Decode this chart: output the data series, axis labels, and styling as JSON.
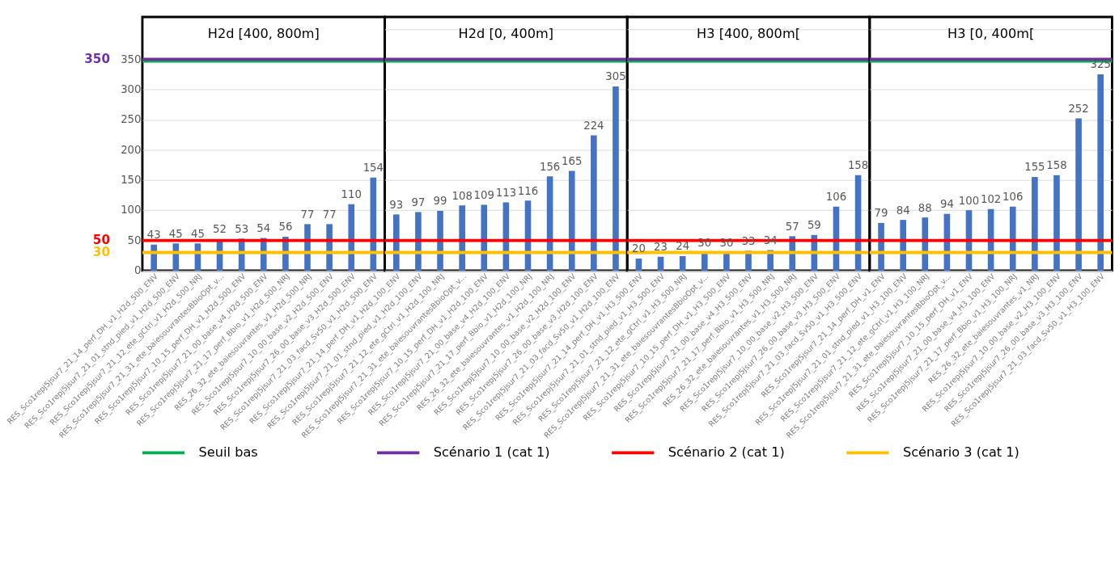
{
  "chart_data": [
    {
      "type": "bar",
      "title": "H2d [400, 800m]",
      "categories": [
        "RES_Sco1repj5jsur7_21_14_perf_DH_v1_H2d_500_ENV",
        "RES_Sco1repj5jsur7_21_01_stnd_pied_v1_H2d_500_ENV",
        "RES_Sco1repj5jsur7_21_12_ete_gCtrl_v1_H2d_500_NRJ",
        "RES_Sco1repj5jsur7_21_31_ete_baiesouvrantesBbioOpt_v...",
        "RES_Sco1repj5jsur7_10_15_perf_DH_v1_H2d_500_ENV",
        "RES_Sco1repj5jsur7_21_00_base_v4_H2d_500_ENV",
        "RES_Sco1repj5jsur7_21_17_perf_Bbio_v1_H2d_500_NRJ",
        "RES_26_32_ete_baiesouvrantes_v1_H2d_500_NRJ",
        "RES_Sco1repj5jsur7_10_00_base_v2_H2d_500_ENV",
        "RES_Sco1repj5jsur7_26_00_base_v3_H2d_500_ENV",
        "RES_Sco1repj5jsur7_21_03_facd_Sv50_v1_H2d_500_ENV"
      ],
      "values": [
        43,
        45,
        45,
        52,
        53,
        54,
        56,
        77,
        77,
        110,
        154
      ],
      "color": "#4472c4",
      "ylim": [
        0,
        420
      ],
      "yticks": [
        0,
        50,
        100,
        150,
        200,
        250,
        300,
        350
      ],
      "grid": "y",
      "data_labels": true,
      "legend": "bottom",
      "ref_lines": [
        {
          "axis": "y",
          "value": 347,
          "label": "Seuil bas",
          "color": "#00b050"
        },
        {
          "axis": "y",
          "value": 350,
          "label": "Scénario 1 (cat 1)",
          "color": "#7030a0"
        },
        {
          "axis": "y",
          "value": 50,
          "label": "Scénario 2 (cat 1)",
          "color": "#ff0000"
        },
        {
          "axis": "y",
          "value": 30,
          "label": "Scénario 3 (cat 1)",
          "color": "#ffc000"
        }
      ],
      "annotations": [
        "350",
        "50",
        "30"
      ]
    },
    {
      "type": "bar",
      "title": "H2d [0, 400m]",
      "categories": [
        "RES_Sco1repj5jsur7_21_14_perf_DH_v1_H2d_100_ENV",
        "RES_Sco1repj5jsur7_21_01_stnd_pied_v1_H2d_100_ENV",
        "RES_Sco1repj5jsur7_21_12_ete_gCtrl_v1_H2d_100_NRJ",
        "RES_Sco1repj5jsur7_21_31_ete_baiesouvrantesBbioOpt_v...",
        "RES_Sco1repj5jsur7_10_15_perf_DH_v1_H2d_100_ENV",
        "RES_Sco1repj5jsur7_21_00_base_v4_H2d_100_ENV",
        "RES_Sco1repj5jsur7_21_17_perf_Bbio_v1_H2d_100_NRJ",
        "RES_26_32_ete_baiesouvrantes_v1_H2d_100_NRJ",
        "RES_Sco1repj5jsur7_10_00_base_v2_H2d_100_ENV",
        "RES_Sco1repj5jsur7_26_00_base_v3_H2d_100_ENV",
        "RES_Sco1repj5jsur7_21_03_facd_Sv50_v1_H2d_100_ENV"
      ],
      "values": [
        93,
        97,
        99,
        108,
        109,
        113,
        116,
        156,
        165,
        224,
        305
      ],
      "color": "#4472c4",
      "ylim": [
        0,
        420
      ],
      "grid": "y",
      "data_labels": true,
      "tick_labels": "x",
      "ref_lines": [
        {
          "axis": "y",
          "value": 347,
          "color": "#00b050"
        },
        {
          "axis": "y",
          "value": 350,
          "color": "#7030a0"
        },
        {
          "axis": "y",
          "value": 50,
          "color": "#ff0000"
        },
        {
          "axis": "y",
          "value": 30,
          "color": "#ffc000"
        }
      ]
    },
    {
      "type": "bar",
      "title": "H3 [400, 800m[",
      "categories": [
        "RES_Sco1repj5jsur7_21_14_perf_DH_v1_H3_500_ENV",
        "RES_Sco1repj5jsur7_21_01_stnd_pied_v1_H3_500_ENV",
        "RES_Sco1repj5jsur7_21_12_ete_gCtrl_v1_H3_500_NRJ",
        "RES_Sco1repj5jsur7_21_31_ete_baiesouvrantesBbioOpt_v...",
        "RES_Sco1repj5jsur7_10_15_perf_DH_v1_H3_500_ENV",
        "RES_Sco1repj5jsur7_21_00_base_v4_H3_500_ENV",
        "RES_Sco1repj5jsur7_21_17_perf_Bbio_v1_H3_500_NRJ",
        "RES_26_32_ete_baiesouvrantes_v1_H3_500_NRJ",
        "RES_Sco1repj5jsur7_10_00_base_v2_H3_500_ENV",
        "RES_Sco1repj5jsur7_26_00_base_v3_H3_500_ENV",
        "RES_Sco1repj5jsur7_21_03_facd_Sv50_v1_H3_500_ENV"
      ],
      "values": [
        20,
        23,
        24,
        30,
        30,
        33,
        34,
        57,
        59,
        106,
        158
      ],
      "color": "#4472c4",
      "ylim": [
        0,
        420
      ],
      "grid": "y",
      "data_labels": true,
      "tick_labels": "x",
      "ref_lines": [
        {
          "axis": "y",
          "value": 347,
          "color": "#00b050"
        },
        {
          "axis": "y",
          "value": 350,
          "color": "#7030a0"
        },
        {
          "axis": "y",
          "value": 50,
          "color": "#ff0000"
        },
        {
          "axis": "y",
          "value": 30,
          "color": "#ffc000"
        }
      ]
    },
    {
      "type": "bar",
      "title": "H3 [0, 400m[",
      "categories": [
        "RES_Sco1repj5jsur7_21_14_perf_DH_v1_ENV",
        "RES_Sco1repj5jsur7_21_01_stnd_pied_v1_H3_100_ENV",
        "RES_Sco1repj5jsur7_21_12_ete_gCtrl_v1_H3_100_NRJ",
        "RES_Sco1repj5jsur7_21_31_ete_baiesouvrantesBbioOpt_v...",
        "RES_Sco1repj5jsur7_10_15_perf_DH_v1_ENV",
        "RES_Sco1repj5jsur7_21_00_base_v4_H3_100_ENV",
        "RES_Sco1repj5jsur7_21_17_perf_Bbio_v1_H3_100_NRJ",
        "RES_26_32_ete_baiesouvrantes_v1_NRJ",
        "RES_Sco1repj5jsur7_10_00_base_v2_H3_100_ENV",
        "RES_Sco1repj5jsur7_26_00_base_v3_H3_100_ENV",
        "RES_Sco1repj5jsur7_21_03_facd_Sv50_v1_H3_100_ENV"
      ],
      "values": [
        79,
        84,
        88,
        94,
        100,
        102,
        106,
        155,
        158,
        252,
        325
      ],
      "color": "#4472c4",
      "ylim": [
        0,
        420
      ],
      "grid": "y",
      "data_labels": true,
      "tick_labels": "x",
      "ref_lines": [
        {
          "axis": "y",
          "value": 347,
          "color": "#00b050"
        },
        {
          "axis": "y",
          "value": 350,
          "color": "#7030a0"
        },
        {
          "axis": "y",
          "value": 50,
          "color": "#ff0000"
        },
        {
          "axis": "y",
          "value": 30,
          "color": "#ffc000"
        }
      ]
    }
  ]
}
